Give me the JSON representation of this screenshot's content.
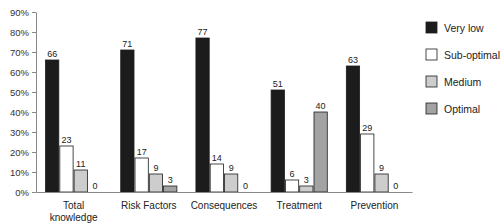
{
  "chart_data": {
    "type": "bar",
    "categories": [
      "Total knowledge",
      "Risk Factors",
      "Consequences",
      "Treatment",
      "Prevention"
    ],
    "series": [
      {
        "name": "Very low",
        "color": "#1c1c1c",
        "values": [
          66,
          71,
          77,
          51,
          63
        ]
      },
      {
        "name": "Sub-optimal",
        "color": "#ffffff",
        "values": [
          23,
          17,
          14,
          6,
          29
        ]
      },
      {
        "name": "Medium",
        "color": "#cdcdcd",
        "values": [
          11,
          9,
          9,
          3,
          9
        ]
      },
      {
        "name": "Optimal",
        "color": "#a3a3a3",
        "values": [
          0,
          3,
          0,
          40,
          0
        ]
      }
    ],
    "ylim": [
      0,
      90
    ],
    "yticks": [
      {
        "value": 0,
        "label": "0%"
      },
      {
        "value": 10,
        "label": "10%"
      },
      {
        "value": 20,
        "label": "20%"
      },
      {
        "value": 30,
        "label": "30%"
      },
      {
        "value": 40,
        "label": "40%"
      },
      {
        "value": 50,
        "label": "50%"
      },
      {
        "value": 60,
        "label": "60%"
      },
      {
        "value": 70,
        "label": "70%"
      },
      {
        "value": 80,
        "label": "80%"
      },
      {
        "value": 90,
        "label": "90%"
      }
    ],
    "grid": false,
    "legend": "right",
    "data_labels": true
  }
}
